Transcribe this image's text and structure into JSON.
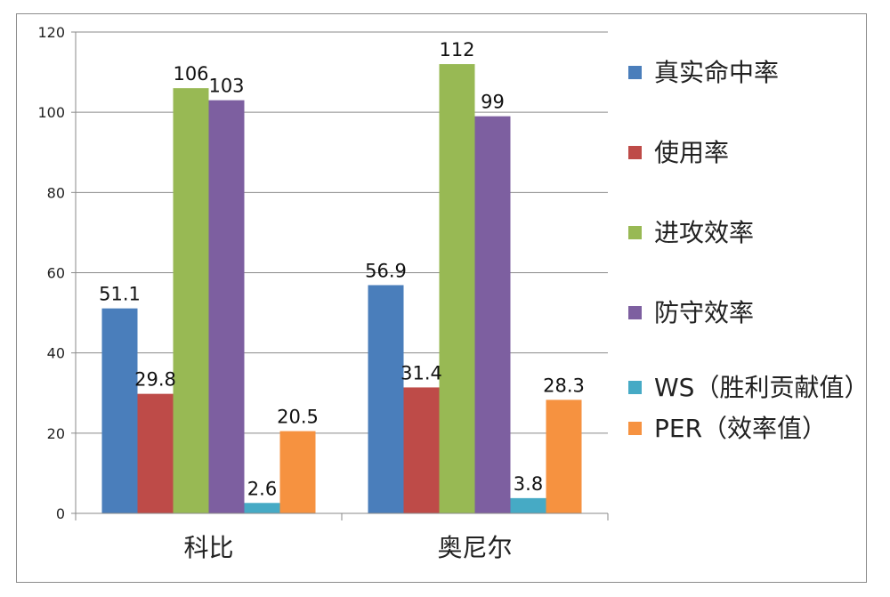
{
  "chart_data": {
    "type": "bar",
    "categories": [
      "科比",
      "奥尼尔"
    ],
    "series": [
      {
        "name": "真实命中率",
        "values": [
          51.1,
          56.9
        ],
        "color": "#4a7ebb"
      },
      {
        "name": "使用率",
        "values": [
          29.8,
          31.4
        ],
        "color": "#be4b48"
      },
      {
        "name": "进攻效率",
        "values": [
          106,
          112
        ],
        "color": "#98b954"
      },
      {
        "name": "防守效率",
        "values": [
          103,
          99
        ],
        "color": "#7d5fa0"
      },
      {
        "name": "WS（胜利贡献值）",
        "values": [
          2.6,
          3.8
        ],
        "color": "#46aac5"
      },
      {
        "name": "PER（效率值）",
        "values": [
          20.5,
          28.3
        ],
        "color": "#f69240"
      }
    ],
    "data_labels": [
      [
        "51.1",
        "29.8",
        "106",
        "103",
        "2.6",
        "20.5"
      ],
      [
        "56.9",
        "31.4",
        "112",
        "99",
        "3.8",
        "28.3"
      ]
    ],
    "ylim": [
      0,
      120
    ],
    "yticks": [
      "0",
      "20",
      "40",
      "60",
      "80",
      "100",
      "120"
    ],
    "grid": true,
    "legend": "right"
  }
}
